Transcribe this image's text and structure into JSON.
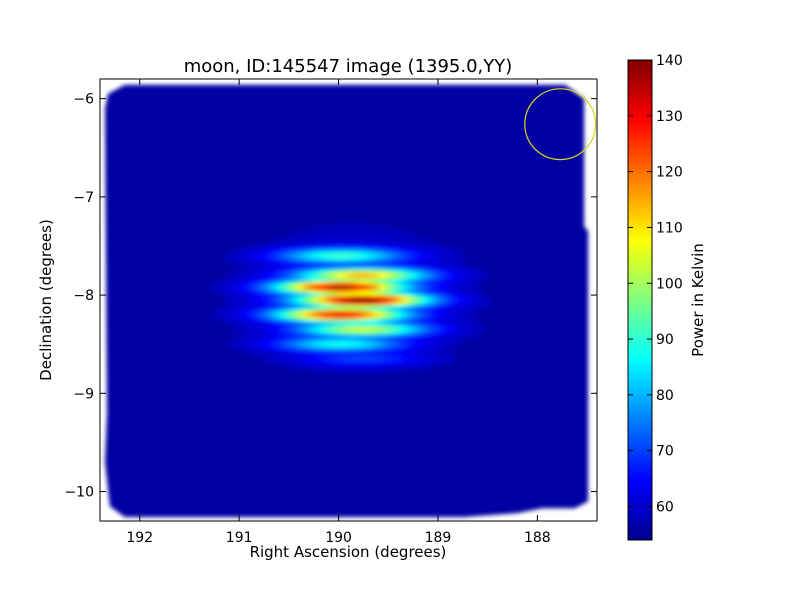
{
  "chart_data": {
    "type": "heatmap",
    "title": "moon, ID:145547 image (1395.0,YY)",
    "xlabel": "Right Ascension (degrees)",
    "ylabel": "Declination (degrees)",
    "xlim": [
      192.4,
      187.4
    ],
    "ylim": [
      -10.3,
      -5.8
    ],
    "x_reversed": true,
    "x_ticks": [
      192,
      191,
      190,
      189,
      188
    ],
    "y_ticks": [
      -6,
      -7,
      -8,
      -9,
      -10
    ],
    "colorbar": {
      "label": "Power in Kelvin",
      "range": [
        54,
        140
      ],
      "ticks": [
        60,
        70,
        80,
        90,
        100,
        110,
        120,
        130,
        140
      ],
      "colormap": "jet"
    },
    "background_level": 57,
    "peak_center": {
      "ra": 189.9,
      "dec": -8.0,
      "peak_value": 138
    },
    "fringe_rows": [
      {
        "dec": -7.6,
        "value": 88
      },
      {
        "dec": -7.8,
        "value": 110
      },
      {
        "dec": -7.92,
        "value": 132
      },
      {
        "dec": -8.05,
        "value": 136
      },
      {
        "dec": -8.2,
        "value": 126
      },
      {
        "dec": -8.35,
        "value": 100
      },
      {
        "dec": -8.5,
        "value": 85
      },
      {
        "dec": -8.65,
        "value": 68
      }
    ],
    "annotation": {
      "shape": "circle",
      "color": "#d8d81a",
      "ra": 187.77,
      "dec": -6.26,
      "radius_deg": 0.36
    }
  }
}
